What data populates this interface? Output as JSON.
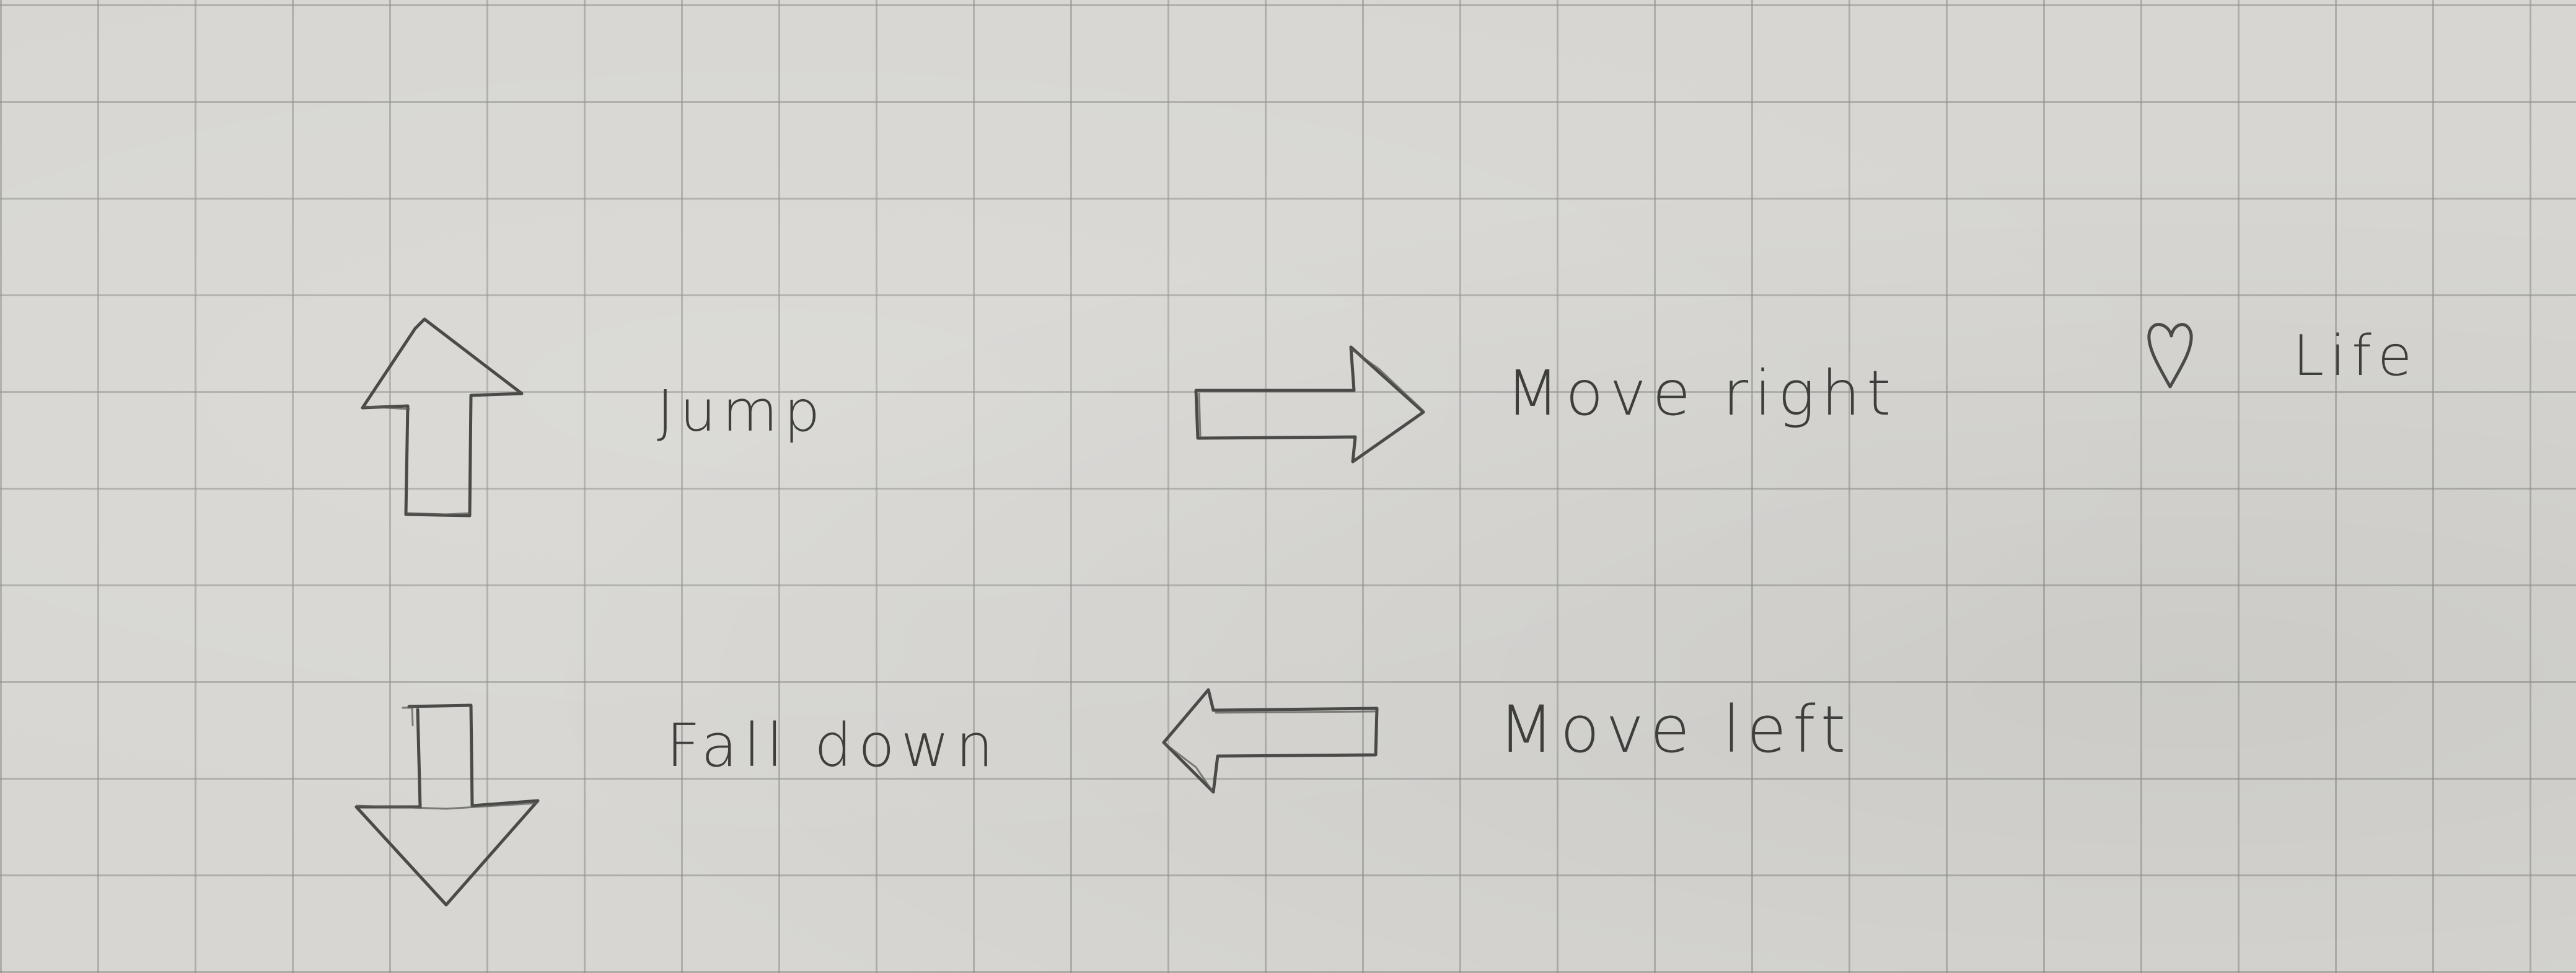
{
  "legend": {
    "jump": {
      "icon": "up-arrow-icon",
      "label": "Jump"
    },
    "fall_down": {
      "icon": "down-arrow-icon",
      "label": "Fall down"
    },
    "move_right": {
      "icon": "right-arrow-icon",
      "label": "Move right"
    },
    "move_left": {
      "icon": "left-arrow-icon",
      "label": "Move left"
    },
    "life": {
      "icon": "heart-icon",
      "label": "Life"
    }
  },
  "paper": {
    "background_color": "#d7d6d2",
    "grid_line_color": "#8c8c88",
    "ink_color": "#4a4a48"
  }
}
